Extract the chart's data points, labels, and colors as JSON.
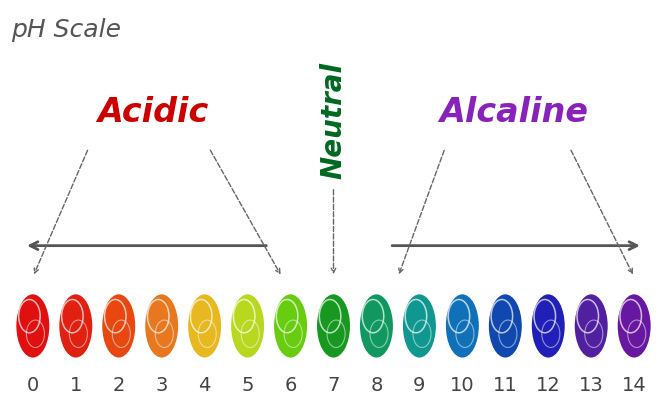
{
  "title": "pH Scale",
  "title_color": "#555555",
  "title_fontsize": 18,
  "background_color": "#ffffff",
  "ph_values": [
    0,
    1,
    2,
    3,
    4,
    5,
    6,
    7,
    8,
    9,
    10,
    11,
    12,
    13,
    14
  ],
  "bubble_colors": [
    "#e01010",
    "#e02010",
    "#e84810",
    "#e87820",
    "#e8b820",
    "#b8d820",
    "#68cc10",
    "#189820",
    "#109860",
    "#109890",
    "#1070b8",
    "#1048b0",
    "#2020b8",
    "#5020a0",
    "#6818a0"
  ],
  "acidic_label": "Acidic",
  "acidic_color": "#cc0000",
  "neutral_label": "Neutral",
  "neutral_color": "#006820",
  "alkaline_label": "Alcaline",
  "alkaline_color": "#8822bb",
  "label_fontsize": 24,
  "neutral_fontsize": 20,
  "number_fontsize": 14,
  "number_color": "#444444",
  "arrow_color": "#555555",
  "dashed_color": "#666666"
}
